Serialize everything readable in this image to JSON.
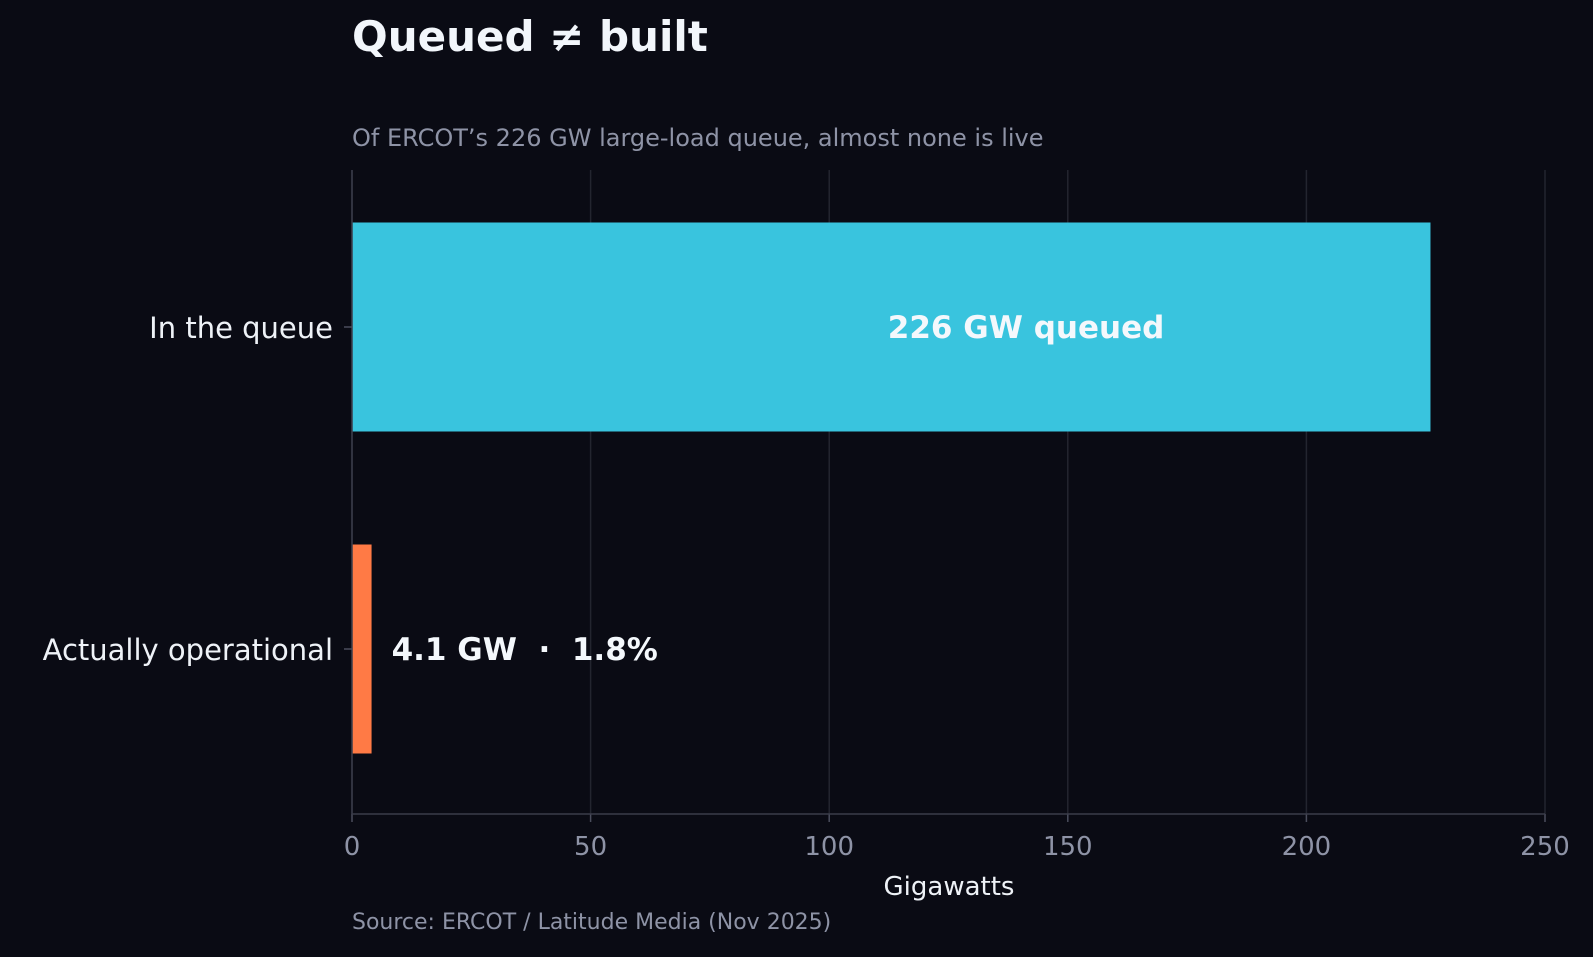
{
  "chart_data": {
    "type": "bar",
    "orientation": "horizontal",
    "title": "Queued ≠ built",
    "subtitle": "Of ERCOT’s 226 GW large-load queue, almost none is live",
    "source": "Source: ERCOT / Latitude Media (Nov 2025)",
    "categories": [
      "In the queue",
      "Actually operational"
    ],
    "values": [
      226,
      4.1
    ],
    "bar_labels": [
      "226 GW queued",
      "4.1 GW  ·  1.8%"
    ],
    "bar_colors": [
      "#39c4de",
      "#ff7a45"
    ],
    "xlabel": "Gigawatts",
    "ylabel": "",
    "xlim": [
      0,
      250
    ],
    "xticks": [
      0,
      50,
      100,
      150,
      200,
      250
    ],
    "grid": "vertical",
    "legend": "none"
  }
}
